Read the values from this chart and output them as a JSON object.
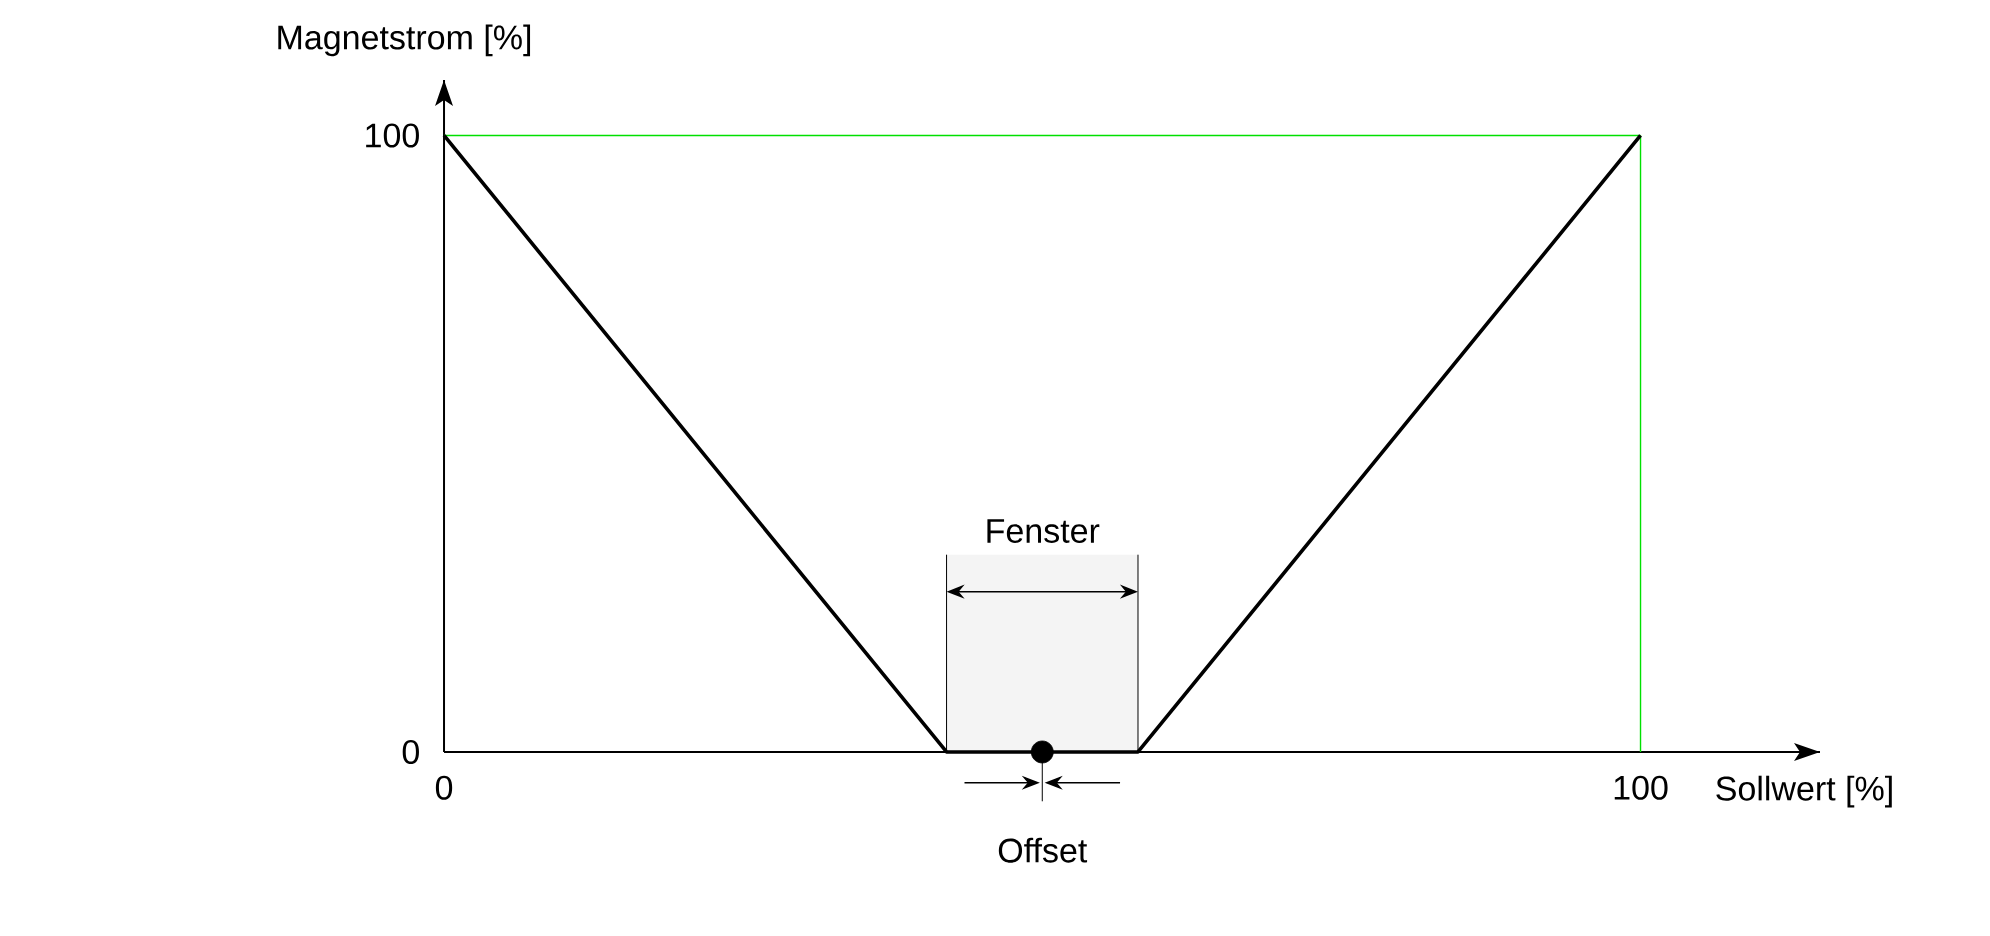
{
  "chart_data": {
    "type": "line",
    "xlabel": "Sollwert [%]",
    "ylabel": "Magnetstrom [%]",
    "xlim": [
      0,
      115
    ],
    "ylim": [
      0,
      109
    ],
    "xticks": [
      0,
      100
    ],
    "yticks": [
      0,
      100
    ],
    "series": [
      {
        "color": "#000000",
        "x": [
          0,
          42,
          58,
          100
        ],
        "values": [
          100,
          0,
          0,
          100
        ]
      },
      {
        "type": "scatter",
        "color": "#000000",
        "marker": "circle",
        "x": [
          50
        ],
        "values": [
          0
        ]
      }
    ],
    "ref_lines": [
      {
        "axis": "y",
        "value": 100,
        "color": "#00e000"
      },
      {
        "axis": "x",
        "value": 100,
        "color": "#00e000"
      },
      {
        "axis": "x",
        "value": 50,
        "label": "Offset"
      }
    ],
    "bands": [
      {
        "axis": "x",
        "from": 42,
        "to": 58,
        "label": "Fenster",
        "color": "#f4f4f4"
      }
    ]
  }
}
